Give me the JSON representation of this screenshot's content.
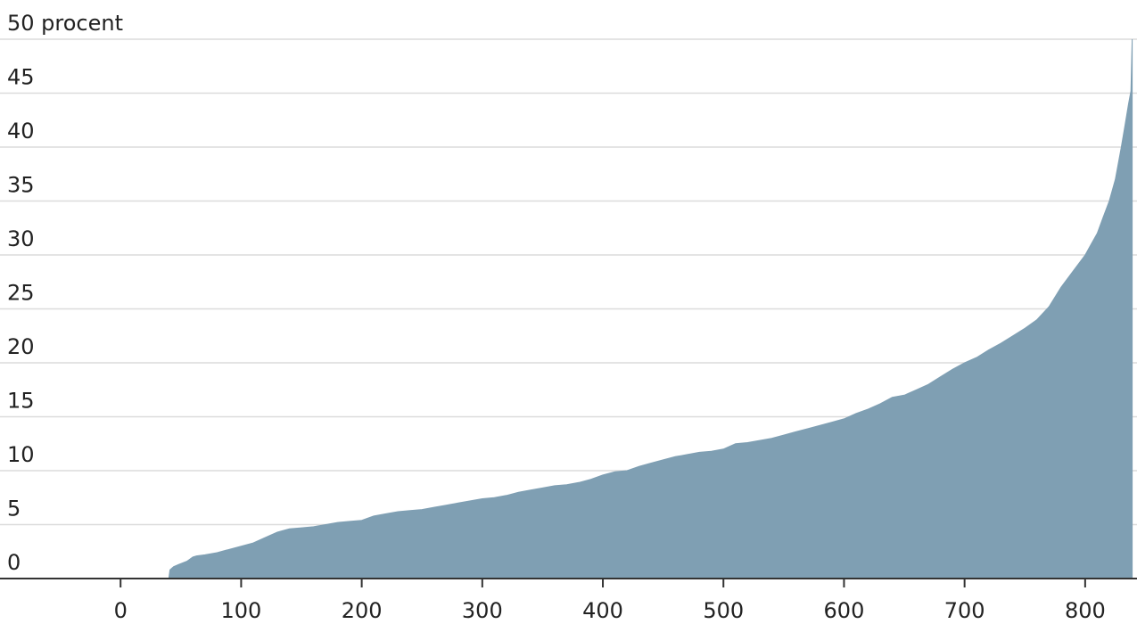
{
  "chart_data": {
    "type": "area",
    "title": "",
    "xlabel": "",
    "ylabel": "",
    "xlim": [
      -100,
      843
    ],
    "ylim": [
      0,
      50
    ],
    "x_ticks": [
      0,
      100,
      200,
      300,
      400,
      500,
      600,
      700,
      800
    ],
    "y_ticks": [
      0,
      5,
      10,
      15,
      20,
      25,
      30,
      35,
      40,
      45,
      50
    ],
    "y_top_tick_label": "50 procent",
    "grid": "horizontal",
    "legend": "none",
    "fill_color": "#7f9fb3",
    "series": [
      {
        "x": [
          40,
          41,
          44,
          48,
          55,
          60,
          63,
          70,
          80,
          90,
          100,
          110,
          120,
          130,
          133,
          140,
          150,
          160,
          170,
          180,
          190,
          200,
          210,
          220,
          230,
          240,
          250,
          260,
          270,
          280,
          290,
          300,
          310,
          320,
          330,
          340,
          350,
          360,
          370,
          380,
          390,
          400,
          410,
          420,
          430,
          440,
          450,
          460,
          470,
          480,
          490,
          500,
          510,
          520,
          530,
          540,
          550,
          560,
          570,
          580,
          590,
          600,
          610,
          620,
          630,
          640,
          650,
          660,
          670,
          680,
          690,
          700,
          710,
          720,
          730,
          740,
          750,
          760,
          770,
          780,
          790,
          800,
          805,
          810,
          815,
          820,
          825,
          830,
          833,
          836,
          838,
          839
        ],
        "values": [
          0,
          0.8,
          1.1,
          1.3,
          1.6,
          2.0,
          2.1,
          2.2,
          2.4,
          2.7,
          3.0,
          3.3,
          3.8,
          4.3,
          4.4,
          4.6,
          4.7,
          4.8,
          5.0,
          5.2,
          5.3,
          5.4,
          5.8,
          6.0,
          6.2,
          6.3,
          6.4,
          6.6,
          6.8,
          7.0,
          7.2,
          7.4,
          7.5,
          7.7,
          8.0,
          8.2,
          8.4,
          8.6,
          8.7,
          8.9,
          9.2,
          9.6,
          9.9,
          10.0,
          10.4,
          10.7,
          11.0,
          11.3,
          11.5,
          11.7,
          11.8,
          12.0,
          12.5,
          12.6,
          12.8,
          13.0,
          13.3,
          13.6,
          13.9,
          14.2,
          14.5,
          14.8,
          15.3,
          15.7,
          16.2,
          16.8,
          17.0,
          17.5,
          18.0,
          18.7,
          19.4,
          20.0,
          20.5,
          21.2,
          21.8,
          22.5,
          23.2,
          24.0,
          25.2,
          27.0,
          28.5,
          30.0,
          31.0,
          32.0,
          33.5,
          35.0,
          37.0,
          40.0,
          42.0,
          44.0,
          45.2,
          50.0
        ]
      }
    ]
  }
}
